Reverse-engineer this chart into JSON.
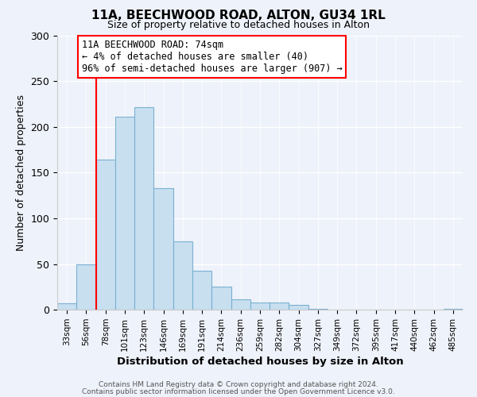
{
  "title": "11A, BEECHWOOD ROAD, ALTON, GU34 1RL",
  "subtitle": "Size of property relative to detached houses in Alton",
  "xlabel": "Distribution of detached houses by size in Alton",
  "ylabel": "Number of detached properties",
  "bar_color": "#c8dff0",
  "bar_edge_color": "#7ab0d0",
  "background_color": "#eef2fa",
  "categories": [
    "33sqm",
    "56sqm",
    "78sqm",
    "101sqm",
    "123sqm",
    "146sqm",
    "169sqm",
    "191sqm",
    "214sqm",
    "236sqm",
    "259sqm",
    "282sqm",
    "304sqm",
    "327sqm",
    "349sqm",
    "372sqm",
    "395sqm",
    "417sqm",
    "440sqm",
    "462sqm",
    "485sqm"
  ],
  "values": [
    7,
    50,
    164,
    211,
    222,
    133,
    75,
    43,
    25,
    11,
    8,
    8,
    5,
    1,
    0,
    0,
    0,
    0,
    0,
    0,
    1
  ],
  "ylim": [
    0,
    300
  ],
  "yticks": [
    0,
    50,
    100,
    150,
    200,
    250,
    300
  ],
  "property_line_idx": 2,
  "annotation_text_line1": "11A BEECHWOOD ROAD: 74sqm",
  "annotation_text_line2": "← 4% of detached houses are smaller (40)",
  "annotation_text_line3": "96% of semi-detached houses are larger (907) →",
  "footer_line1": "Contains HM Land Registry data © Crown copyright and database right 2024.",
  "footer_line2": "Contains public sector information licensed under the Open Government Licence v3.0."
}
